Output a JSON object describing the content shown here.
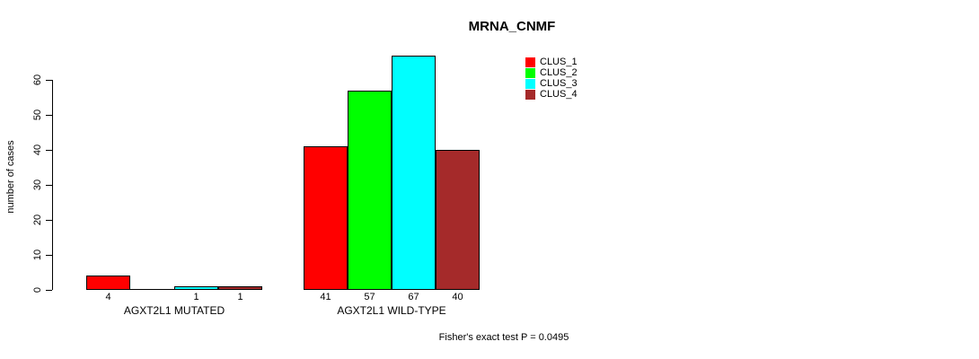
{
  "chart_data": {
    "type": "bar",
    "title": "MRNA_CNMF",
    "ylabel": "number of cases",
    "xlabel": "",
    "ylim": [
      0,
      67
    ],
    "yticks": [
      0,
      10,
      20,
      30,
      40,
      50,
      60
    ],
    "grid": false,
    "legend_position": "top-right",
    "categories": [
      "AGXT2L1 MUTATED",
      "AGXT2L1 WILD-TYPE"
    ],
    "series": [
      {
        "name": "CLUS_1",
        "color": "#FF0000",
        "values": [
          4,
          41
        ]
      },
      {
        "name": "CLUS_2",
        "color": "#00FF00",
        "values": [
          0,
          57
        ]
      },
      {
        "name": "CLUS_3",
        "color": "#00FFFF",
        "values": [
          1,
          67
        ]
      },
      {
        "name": "CLUS_4",
        "color": "#A52A2A",
        "values": [
          1,
          40
        ]
      }
    ],
    "bar_labels": [
      [
        "4",
        "",
        "1",
        "1"
      ],
      [
        "41",
        "57",
        "67",
        "40"
      ]
    ],
    "annotation": "Fisher's exact test P = 0.0495"
  }
}
